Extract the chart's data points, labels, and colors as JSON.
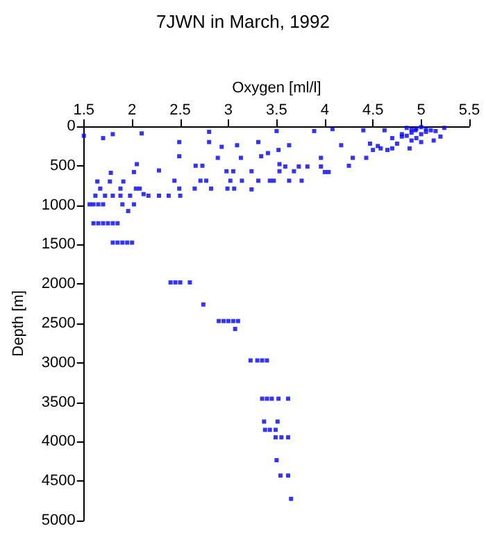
{
  "chart_data": {
    "type": "scatter",
    "title": "7JWN in March, 1992",
    "xlabel": "Oxygen [ml/l]",
    "ylabel": "Depth [m]",
    "xlim": [
      1.5,
      5.5
    ],
    "xticks": [
      1.5,
      2,
      2.5,
      3,
      3.5,
      4,
      4.5,
      5,
      5.5
    ],
    "ylim": [
      5000,
      0
    ],
    "yticks": [
      0,
      500,
      1000,
      1500,
      2000,
      2500,
      3000,
      3500,
      4000,
      4500,
      5000
    ],
    "grid": false,
    "marker": "square",
    "series": [
      {
        "color": "#0000ff",
        "x": [
          1.5,
          1.7,
          1.8,
          2.1,
          2.8,
          2.8,
          2.49,
          2.49,
          2.93,
          2.89,
          3.09,
          3.13,
          3.31,
          3.34,
          3.41,
          3.5,
          3.52,
          3.63,
          3.89,
          3.96,
          4.08,
          4.17,
          4.25,
          4.43,
          4.29,
          4.4,
          4.47,
          4.62,
          4.58,
          4.75,
          4.88,
          4.94,
          5.24,
          5.2,
          5.13,
          4.85,
          4.9,
          4.95,
          5.0,
          5.05,
          5.1,
          4.8,
          4.85,
          4.9,
          4.95,
          5.0,
          5.05,
          4.7,
          4.9,
          5.0,
          4.65,
          4.55,
          4.5,
          4.7,
          4.8,
          5.15,
          2.98,
          3.05,
          3.02,
          3.14,
          3.31,
          3.43,
          3.47,
          3.24,
          3.53,
          3.63,
          3.76,
          3.68,
          3.73,
          3.82,
          3.96,
          4.0,
          4.04,
          3.59,
          3.53,
          2.66,
          2.73,
          2.65,
          2.71,
          2.77,
          2.82,
          2.99,
          3.06,
          3.24,
          2.28,
          2.28,
          2.38,
          2.49,
          2.44,
          2.5,
          2.05,
          2.02,
          2.04,
          2.08,
          2.12,
          2.17,
          1.98,
          1.88,
          1.8,
          1.72,
          1.62,
          1.64,
          1.78,
          1.77,
          1.91,
          1.67,
          1.88,
          2.02,
          1.96,
          1.9,
          1.56,
          1.6,
          1.65,
          1.7,
          1.6,
          1.65,
          1.7,
          1.75,
          1.8,
          1.85,
          1.8,
          1.85,
          1.9,
          1.95,
          2.0,
          2.4,
          2.45,
          2.5,
          2.6,
          2.74,
          2.9,
          2.95,
          3.0,
          3.05,
          3.1,
          3.07,
          3.23,
          3.3,
          3.35,
          3.4,
          3.35,
          3.4,
          3.45,
          3.52,
          3.62,
          3.37,
          3.51,
          3.38,
          3.43,
          3.49,
          3.49,
          3.55,
          3.62,
          3.5,
          3.54,
          3.62,
          3.65
        ],
        "values": [
          120,
          150,
          100,
          90,
          70,
          200,
          200,
          380,
          260,
          400,
          240,
          400,
          200,
          380,
          340,
          60,
          300,
          240,
          60,
          400,
          35,
          240,
          500,
          400,
          400,
          50,
          220,
          50,
          280,
          220,
          280,
          50,
          20,
          130,
          180,
          20,
          40,
          30,
          10,
          30,
          50,
          100,
          120,
          80,
          150,
          100,
          70,
          150,
          180,
          200,
          300,
          250,
          300,
          280,
          130,
          60,
          570,
          570,
          690,
          690,
          690,
          690,
          690,
          570,
          570,
          690,
          690,
          570,
          510,
          510,
          510,
          580,
          580,
          510,
          480,
          500,
          500,
          790,
          690,
          690,
          790,
          790,
          790,
          800,
          560,
          880,
          880,
          790,
          690,
          880,
          480,
          580,
          790,
          790,
          860,
          880,
          880,
          880,
          880,
          880,
          880,
          700,
          590,
          700,
          700,
          790,
          790,
          990,
          1075,
          990,
          990,
          990,
          990,
          990,
          1230,
          1230,
          1230,
          1230,
          1230,
          1230,
          1475,
          1475,
          1475,
          1475,
          1475,
          1980,
          1980,
          1980,
          1980,
          2260,
          2470,
          2470,
          2470,
          2470,
          2470,
          2570,
          2970,
          2970,
          2970,
          2970,
          3455,
          3455,
          3455,
          3455,
          3455,
          3745,
          3745,
          3850,
          3850,
          3850,
          3945,
          3945,
          3945,
          4235,
          4430,
          4430,
          4725
        ]
      }
    ]
  }
}
